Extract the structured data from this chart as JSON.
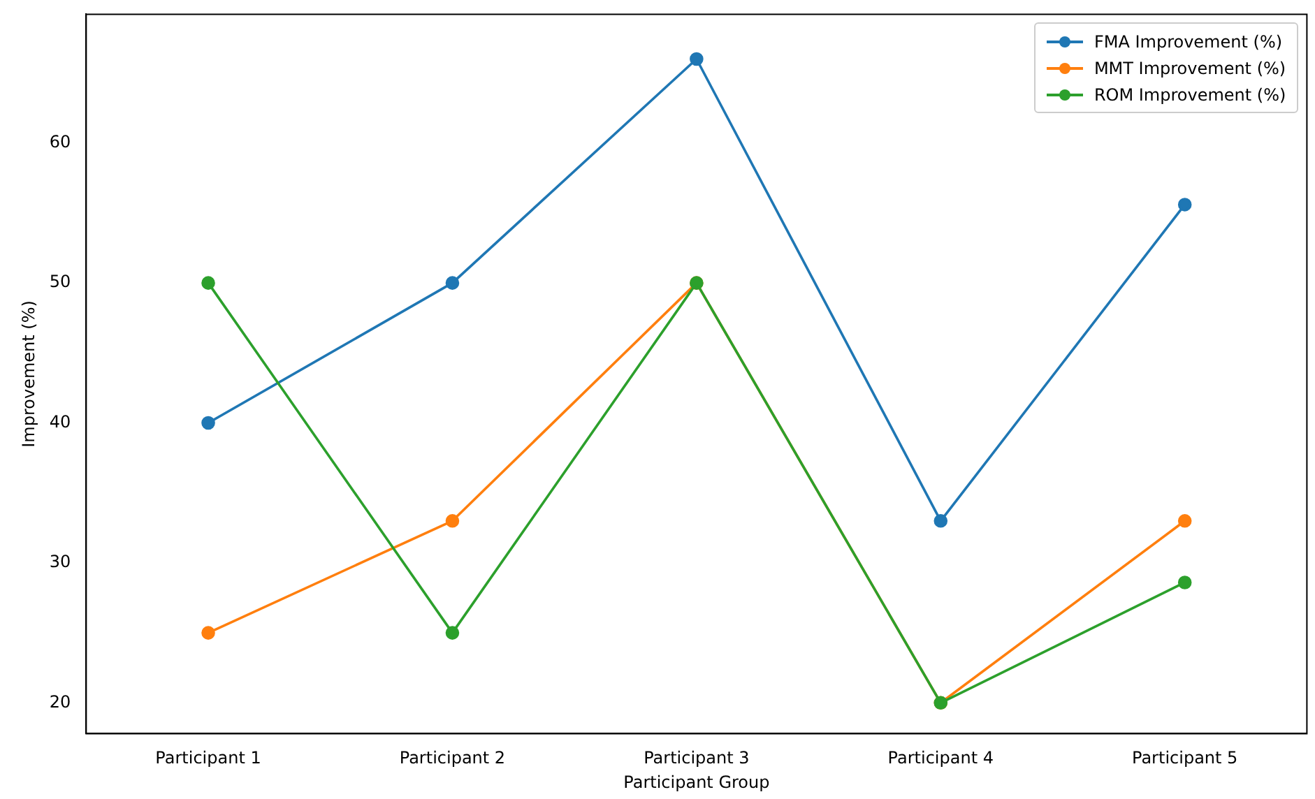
{
  "chart_data": {
    "type": "line",
    "xlabel": "Participant Group",
    "ylabel": "Improvement (%)",
    "categories": [
      "Participant 1",
      "Participant 2",
      "Participant 3",
      "Participant 4",
      "Participant 5"
    ],
    "series": [
      {
        "name": "FMA Improvement (%)",
        "color": "#1f77b4",
        "values": [
          40,
          50,
          66,
          33,
          55.6
        ]
      },
      {
        "name": "MMT Improvement (%)",
        "color": "#ff7f0e",
        "values": [
          25,
          33,
          50,
          20,
          33
        ]
      },
      {
        "name": "ROM Improvement (%)",
        "color": "#2ca02c",
        "values": [
          50,
          25,
          50,
          20,
          28.6
        ]
      }
    ],
    "ylim": [
      17.8,
      69.2
    ],
    "yticks": [
      20,
      30,
      40,
      50,
      60
    ],
    "grid": false,
    "legend": "top right",
    "marker": "circle",
    "line_style": "solid"
  }
}
